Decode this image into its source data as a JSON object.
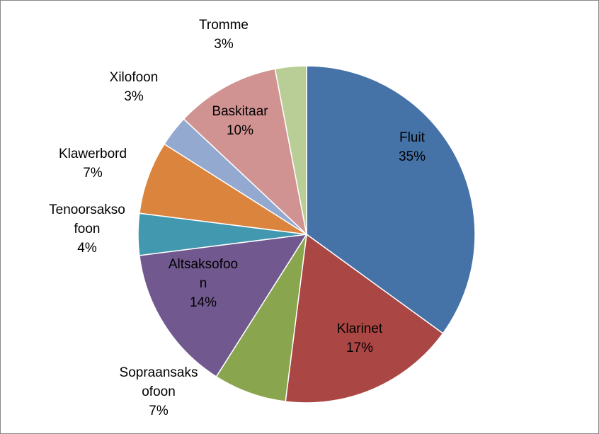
{
  "chart_data": {
    "type": "pie",
    "categories": [
      "Fluit",
      "Klarinet",
      "Sopraansaksofoon",
      "Altsaksofoon",
      "Tenoorsaksofoon",
      "Klawerbord",
      "Xilofoon",
      "Baskitaar",
      "Tromme"
    ],
    "values": [
      35,
      17,
      7,
      14,
      4,
      7,
      3,
      10,
      3
    ],
    "value_labels": [
      "35%",
      "17%",
      "7%",
      "14%",
      "4%",
      "7%",
      "3%",
      "10%",
      "3%"
    ],
    "colors": [
      "#4572a7",
      "#aa4643",
      "#89a54e",
      "#71588f",
      "#4198af",
      "#db843d",
      "#93a9cf",
      "#d19392",
      "#b9cd96"
    ]
  }
}
